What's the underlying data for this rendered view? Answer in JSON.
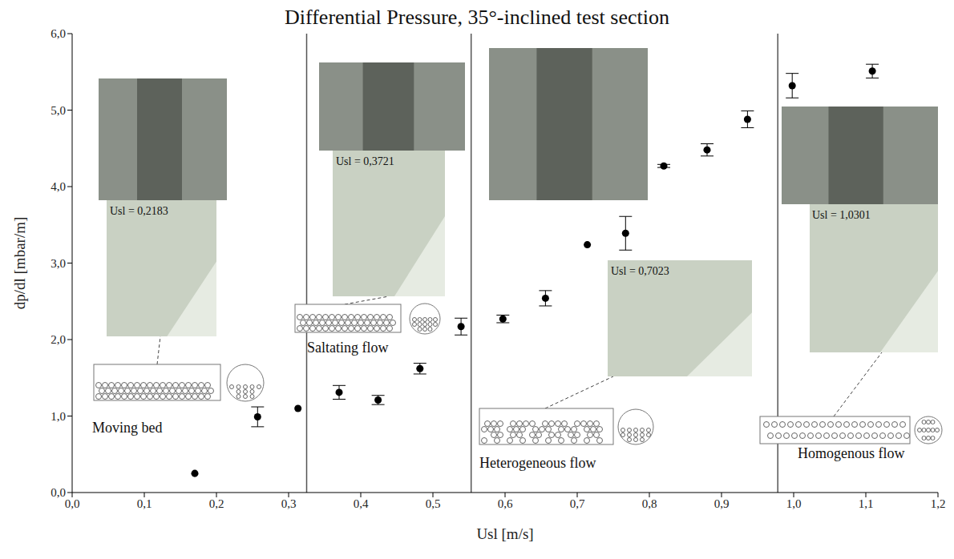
{
  "chart_data": {
    "type": "scatter",
    "title": "Differential Pressure, 35°-inclined test section",
    "x_label": "Usl [m/s]",
    "y_label": "dp/dl [mbar/m]",
    "x": [
      0.17,
      0.257,
      0.313,
      0.37,
      0.424,
      0.482,
      0.539,
      0.597,
      0.656,
      0.714,
      0.767,
      0.82,
      0.88,
      0.936,
      0.998,
      1.109
    ],
    "values": [
      0.25,
      0.99,
      1.1,
      1.31,
      1.21,
      1.62,
      2.17,
      2.27,
      2.54,
      3.24,
      3.39,
      4.27,
      4.48,
      4.88,
      5.32,
      5.51
    ],
    "errors": [
      null,
      0.13,
      null,
      0.09,
      0.06,
      0.07,
      0.11,
      0.05,
      0.1,
      null,
      0.22,
      0.02,
      0.08,
      0.11,
      0.16,
      0.09
    ],
    "color": "#000000",
    "marker": "circle",
    "grid": false,
    "xlim": [
      0,
      1.2
    ],
    "ylim": [
      0,
      6
    ],
    "xticks": [
      {
        "value": 0,
        "label": "0,0"
      },
      {
        "value": 0.1,
        "label": "0,1"
      },
      {
        "value": 0.2,
        "label": "0,2"
      },
      {
        "value": 0.3,
        "label": "0,3"
      },
      {
        "value": 0.4,
        "label": "0,4"
      },
      {
        "value": 0.5,
        "label": "0,5"
      },
      {
        "value": 0.6,
        "label": "0,6"
      },
      {
        "value": 0.7,
        "label": "0,7"
      },
      {
        "value": 0.8,
        "label": "0,8"
      },
      {
        "value": 0.9,
        "label": "0,9"
      },
      {
        "value": 1.0,
        "label": "1,0"
      },
      {
        "value": 1.1,
        "label": "1,1"
      },
      {
        "value": 1.2,
        "label": "1,2"
      }
    ],
    "yticks": [
      {
        "value": 0,
        "label": "0,0"
      },
      {
        "value": 1,
        "label": "1,0"
      },
      {
        "value": 2,
        "label": "2,0"
      },
      {
        "value": 3,
        "label": "3,0"
      },
      {
        "value": 4,
        "label": "4,0"
      },
      {
        "value": 5,
        "label": "5,0"
      },
      {
        "value": 6,
        "label": "6,0"
      }
    ],
    "region_boundaries": [
      0.325,
      0.553,
      0.978
    ],
    "regions": [
      "Moving bed",
      "Saltating flow",
      "Heterogeneous flow",
      "Homogenous flow"
    ],
    "annotations": [
      "Usl = 0,2183",
      "Usl = 0,3721",
      "Usl = 0,7023",
      "Usl = 1,0301"
    ]
  }
}
